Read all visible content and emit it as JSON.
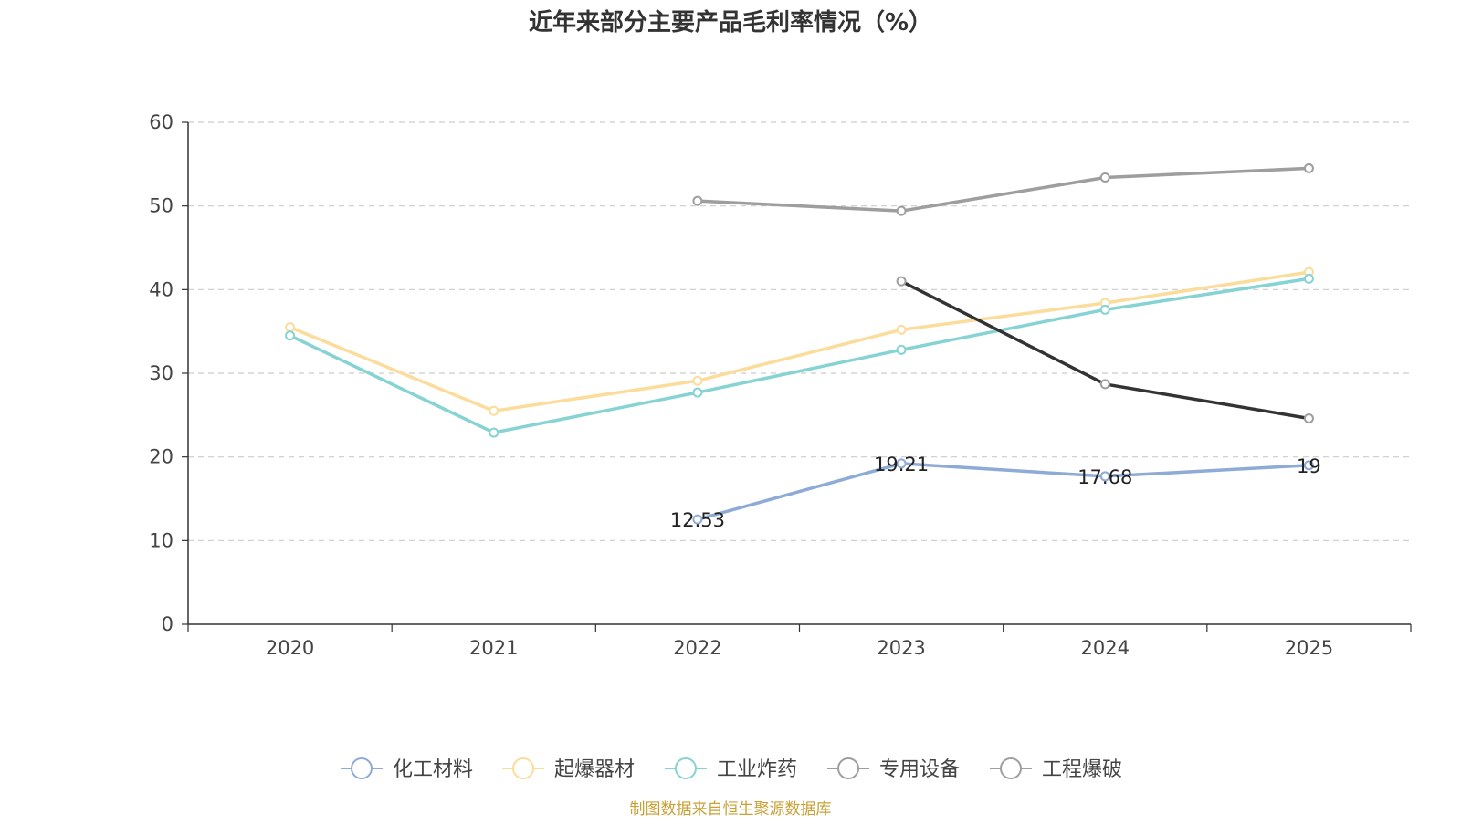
{
  "chart_data": {
    "type": "line",
    "title": "近年来部分主要产品毛利率情况（%）",
    "xlabel": "",
    "ylabel": "",
    "categories": [
      "2020",
      "2021",
      "2022",
      "2023",
      "2024",
      "2025"
    ],
    "ylim": [
      0,
      60
    ],
    "yticks": [
      0,
      10,
      20,
      30,
      40,
      50,
      60
    ],
    "grid": true,
    "legend_position": "bottom-center",
    "series": [
      {
        "name": "化工材料",
        "color": "#8eaad6",
        "values": [
          null,
          null,
          12.53,
          19.21,
          17.68,
          19
        ],
        "show_labels": true
      },
      {
        "name": "起爆器材",
        "color": "#fbdc9a",
        "values": [
          35.5,
          25.5,
          29.1,
          35.2,
          38.4,
          42.1
        ],
        "show_labels": false
      },
      {
        "name": "工业炸药",
        "color": "#86d3d3",
        "values": [
          34.5,
          22.9,
          27.7,
          32.8,
          37.6,
          41.3
        ],
        "show_labels": false
      },
      {
        "name": "专用设备",
        "color": "#9e9e9e",
        "values": [
          null,
          null,
          50.6,
          49.4,
          53.4,
          54.5
        ],
        "show_labels": false
      },
      {
        "name": "工程爆破",
        "color": "#333333",
        "legend_color": "#9e9e9e",
        "values": [
          null,
          null,
          null,
          41.0,
          28.7,
          24.6
        ],
        "show_labels": false
      }
    ],
    "data_labels": [
      "12.53",
      "19.21",
      "17.68",
      "19"
    ]
  },
  "source": "制图数据来自恒生聚源数据库"
}
